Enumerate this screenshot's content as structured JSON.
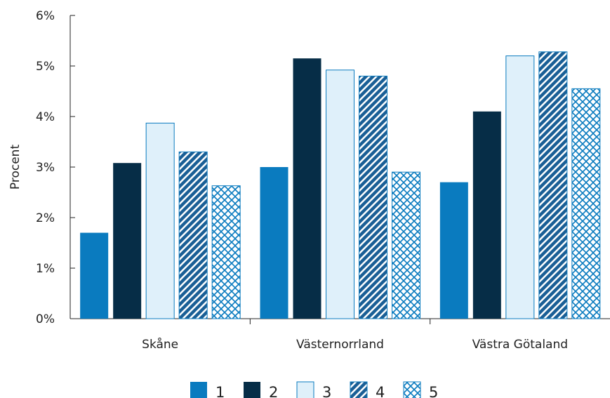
{
  "chart_data": {
    "type": "bar",
    "ylabel": "Procent",
    "xlabel": "",
    "ylim": [
      0,
      6
    ],
    "yticks": [
      "0%",
      "1%",
      "2%",
      "3%",
      "4%",
      "5%",
      "6%"
    ],
    "grid": false,
    "legend_position": "bottom",
    "categories": [
      "Skåne",
      "Västernorrland",
      "Västra Götaland"
    ],
    "series": [
      {
        "name": "1",
        "values": [
          1.7,
          3.0,
          2.7
        ],
        "color": "#0a7bbf",
        "pattern": "solid"
      },
      {
        "name": "2",
        "values": [
          3.08,
          5.15,
          4.1
        ],
        "color": "#062d47",
        "pattern": "solid"
      },
      {
        "name": "3",
        "values": [
          3.87,
          4.92,
          5.2
        ],
        "color": "#dff0fa",
        "pattern": "solid"
      },
      {
        "name": "4",
        "values": [
          3.3,
          4.8,
          5.28
        ],
        "color": "#1a5f96",
        "pattern": "diagonal-stripes"
      },
      {
        "name": "5",
        "values": [
          2.63,
          2.9,
          4.55
        ],
        "color": "#0a7bbf",
        "pattern": "crosshatch"
      }
    ]
  }
}
